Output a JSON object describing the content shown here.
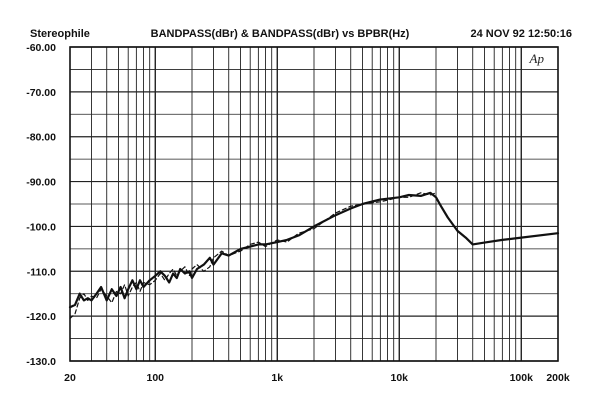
{
  "header": {
    "left": "Stereophile",
    "center": "BANDPASS(dBr) & BANDPASS(dBr) vs BPBR(Hz)",
    "right": "24 NOV 92 12:50:16"
  },
  "chart_data": {
    "type": "line",
    "title": "BANDPASS(dBr) & BANDPASS(dBr) vs BPBR(Hz)",
    "xlabel": "",
    "ylabel": "",
    "x_scale": "log",
    "xlim": [
      20,
      200000
    ],
    "ylim": [
      -130,
      -60
    ],
    "grid": true,
    "y_ticks": [
      {
        "value": -60,
        "label": "-60.00"
      },
      {
        "value": -70,
        "label": "-70.00"
      },
      {
        "value": -80,
        "label": "-80.00"
      },
      {
        "value": -90,
        "label": "-90.00"
      },
      {
        "value": -100,
        "label": "-100.0"
      },
      {
        "value": -110,
        "label": "-110.0"
      },
      {
        "value": -120,
        "label": "-120.0"
      },
      {
        "value": -130,
        "label": "-130.0"
      }
    ],
    "x_ticks": [
      {
        "value": 20,
        "label": "20"
      },
      {
        "value": 100,
        "label": "100"
      },
      {
        "value": 1000,
        "label": "1k"
      },
      {
        "value": 10000,
        "label": "10k"
      },
      {
        "value": 100000,
        "label": "100k"
      },
      {
        "value": 200000,
        "label": "200k"
      }
    ],
    "annotations": [
      {
        "text": "Ap"
      }
    ],
    "series": [
      {
        "style": "solid",
        "x": [
          20,
          22,
          24,
          26,
          28,
          30,
          33,
          36,
          40,
          44,
          48,
          52,
          56,
          60,
          65,
          70,
          75,
          80,
          90,
          100,
          110,
          120,
          130,
          140,
          150,
          160,
          175,
          190,
          200,
          220,
          250,
          280,
          300,
          350,
          400,
          500,
          600,
          700,
          800,
          1000,
          1200,
          1500,
          2000,
          3000,
          4000,
          5000,
          7000,
          10000,
          12000,
          15000,
          18000,
          20000,
          22000,
          25000,
          30000,
          35000,
          40000,
          50000,
          70000,
          100000,
          200000
        ],
        "y": [
          -118,
          -117.5,
          -115,
          -116.5,
          -116,
          -116.5,
          -115,
          -113.5,
          -116.5,
          -114,
          -115.5,
          -113.5,
          -116,
          -114,
          -112,
          -114,
          -112,
          -113.5,
          -112,
          -111,
          -110,
          -111,
          -112.5,
          -110.5,
          -111.5,
          -109.5,
          -110.5,
          -110,
          -111.5,
          -109.5,
          -108.5,
          -107,
          -108.5,
          -106,
          -106.5,
          -105,
          -104.5,
          -104,
          -104,
          -103.5,
          -103,
          -102,
          -100,
          -97.5,
          -96,
          -95,
          -94,
          -93.5,
          -93,
          -93.2,
          -92.5,
          -93.5,
          -95.5,
          -98,
          -101,
          -102.5,
          -104,
          -103.6,
          -103,
          -102.5,
          -101.5
        ]
      },
      {
        "style": "dashed",
        "x": [
          20,
          22,
          24,
          26,
          28,
          30,
          33,
          36,
          40,
          44,
          48,
          52,
          56,
          60,
          65,
          70,
          75,
          80,
          90,
          100,
          110,
          120,
          130,
          140,
          150,
          160,
          175,
          190,
          200,
          220,
          250,
          280,
          300,
          350,
          400,
          500,
          600,
          700,
          800,
          1000,
          1200,
          1500,
          2000,
          3000,
          4000,
          5000,
          7000,
          10000,
          12000,
          15000,
          18000,
          20000
        ],
        "y": [
          -120.5,
          -119.5,
          -116,
          -115,
          -116.5,
          -115.5,
          -116,
          -114,
          -115.5,
          -117,
          -114.5,
          -115,
          -113,
          -115.5,
          -113.5,
          -112.5,
          -114.5,
          -112.5,
          -113,
          -112,
          -110.5,
          -112,
          -110.5,
          -109.5,
          -111,
          -110,
          -109,
          -111,
          -109.5,
          -108.5,
          -110,
          -109,
          -107,
          -105.5,
          -106.5,
          -105.5,
          -104,
          -103.5,
          -104.5,
          -103,
          -103.5,
          -101.5,
          -100.5,
          -97,
          -95.5,
          -95,
          -94.5,
          -93.5,
          -93.5,
          -92.5,
          -93,
          -92.5
        ]
      }
    ]
  }
}
